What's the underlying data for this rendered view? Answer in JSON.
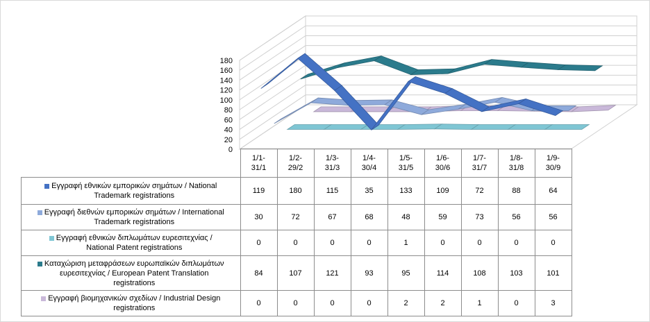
{
  "chart_data": {
    "type": "line",
    "subtype": "3d-line-with-data-table",
    "categories": [
      "1/1-31/1",
      "1/2-29/2",
      "1/3-31/3",
      "1/4-30/4",
      "1/5-31/5",
      "1/6-30/6",
      "1/7-31/7",
      "1/8-31/8",
      "1/9-30/9"
    ],
    "category_lines": [
      [
        "1/1-",
        "31/1"
      ],
      [
        "1/2-",
        "29/2"
      ],
      [
        "1/3-",
        "31/3"
      ],
      [
        "1/4-",
        "30/4"
      ],
      [
        "1/5-",
        "31/5"
      ],
      [
        "1/6-",
        "30/6"
      ],
      [
        "1/7-",
        "31/7"
      ],
      [
        "1/8-",
        "31/8"
      ],
      [
        "1/9-",
        "30/9"
      ]
    ],
    "ylim": [
      0,
      180
    ],
    "yticks": [
      "0",
      "20",
      "40",
      "60",
      "80",
      "100",
      "120",
      "140",
      "160",
      "180"
    ],
    "grid": true,
    "legend": "data-table",
    "series": [
      {
        "name": "Εγγραφή εθνικών εμπορικών σημάτων / National Trademark registrations",
        "label_lines": [
          "Εγγραφή εθνικών εμπορικών σημάτων / National",
          "Trademark registrations"
        ],
        "color": "#4472c4",
        "values": [
          119,
          180,
          115,
          35,
          133,
          109,
          72,
          88,
          64
        ]
      },
      {
        "name": "Εγγραφή διεθνών εμπορικών σημάτων / International Trademark registrations",
        "label_lines": [
          "Εγγραφή διεθνών εμπορικών σημάτων / International",
          "Trademark registrations"
        ],
        "color": "#8eaadb",
        "values": [
          30,
          72,
          67,
          68,
          48,
          59,
          73,
          56,
          56
        ]
      },
      {
        "name": "Εγγραφή εθνικών διπλωμάτων ευρεσιτεχνίας / National Patent registrations",
        "label_lines": [
          "Εγγραφή εθνικών διπλωμάτων ευρεσιτεχνίας /",
          "National Patent registrations"
        ],
        "color": "#7fc6d4",
        "values": [
          0,
          0,
          0,
          0,
          1,
          0,
          0,
          0,
          0
        ]
      },
      {
        "name": "Καταχώριση μεταφράσεων ευρωπαϊκών διπλωμάτων ευρεσιτεχνίας / European Patent Translation registrations",
        "label_lines": [
          "Καταχώριση μεταφράσεων ευρωπαϊκών διπλωμάτων",
          "ευρεσιτεχνίας / European Patent Translation",
          "registrations"
        ],
        "color": "#2b7b8c",
        "values": [
          84,
          107,
          121,
          93,
          95,
          114,
          108,
          103,
          101
        ]
      },
      {
        "name": "Εγγραφή βιομηχανικών σχεδίων / Industrial Design registrations",
        "label_lines": [
          "Εγγραφή βιομηχανικών σχεδίων / Industrial Design",
          "registrations"
        ],
        "color": "#c9b8d9",
        "values": [
          0,
          0,
          0,
          0,
          2,
          2,
          1,
          0,
          3
        ]
      }
    ]
  }
}
